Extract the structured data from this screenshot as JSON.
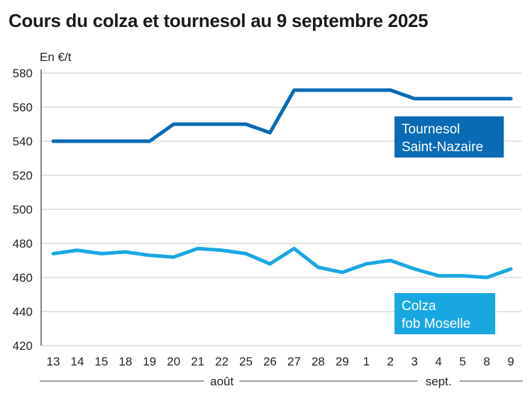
{
  "chart_data": {
    "type": "line",
    "title": "Cours du colza et tournesol au 9 septembre 2025",
    "ylabel": "En €/t",
    "ylim": [
      420,
      580
    ],
    "yticks": [
      420,
      440,
      460,
      480,
      500,
      520,
      540,
      560,
      580
    ],
    "categories": [
      "13",
      "14",
      "15",
      "18",
      "19",
      "20",
      "21",
      "22",
      "25",
      "26",
      "27",
      "28",
      "29",
      "1",
      "2",
      "3",
      "4",
      "5",
      "8",
      "9"
    ],
    "month_groups": [
      {
        "label": "août",
        "from": 0,
        "to": 12
      },
      {
        "label": "sept.",
        "from": 13,
        "to": 19
      }
    ],
    "grid": true,
    "series": [
      {
        "name_lines": [
          "Tournesol",
          "Saint-Nazaire"
        ],
        "color": "#0a6ab4",
        "values": [
          540,
          540,
          540,
          540,
          540,
          550,
          550,
          550,
          550,
          545,
          570,
          570,
          570,
          570,
          570,
          565,
          565,
          565,
          565,
          565
        ]
      },
      {
        "name_lines": [
          "Colza",
          "fob Moselle"
        ],
        "color": "#19a7e2",
        "values": [
          474,
          476,
          474,
          475,
          473,
          472,
          477,
          476,
          474,
          468,
          477,
          466,
          463,
          468,
          470,
          465,
          461,
          461,
          460,
          465
        ]
      }
    ]
  }
}
